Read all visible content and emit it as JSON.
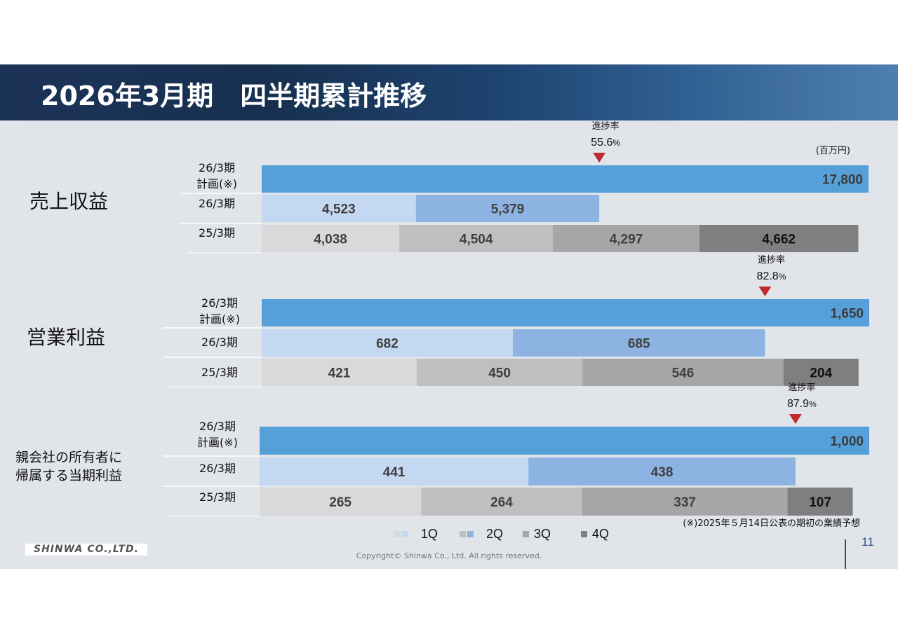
{
  "header": {
    "title": "2026年3月期　四半期累計推移"
  },
  "unit": "(百万円)",
  "footnote": "(※)2025年５月14日公表の期初の業績予想",
  "copyright": "Copyright© Shinwa Co., Ltd. All rights reserved.",
  "logo_text": "SHINWA CO.,LTD.",
  "page_number": "11",
  "legend": [
    {
      "label": "1Q",
      "color": "#c5d8f1"
    },
    {
      "label": "2Q",
      "color": "#8db3e2"
    },
    {
      "label": "3Q",
      "color": "#a6a6a6"
    },
    {
      "label": "4Q",
      "color": "#7f7f7f"
    }
  ],
  "colors": {
    "plan": "#56a0da",
    "q1_current": "#c5d8f1",
    "q2_current": "#8db3e2",
    "q1_prev": "#d9d9d9",
    "q2_prev": "#bfbfbf",
    "q3_prev": "#a6a6a6",
    "q4_prev": "#7f7f7f",
    "marker": "#c0282d"
  },
  "chart_data": [
    {
      "type": "bar",
      "orientation": "horizontal",
      "stacked": true,
      "section": "売上収益",
      "progress_label": "進捗率",
      "progress": "55.6%",
      "rows": [
        {
          "label": [
            "26/3期",
            "計画(※)"
          ],
          "segments": [
            17800
          ],
          "labels": [
            "17,800"
          ]
        },
        {
          "label": [
            "26/3期"
          ],
          "segments": [
            4523,
            5379
          ],
          "labels": [
            "4,523",
            "5,379"
          ]
        },
        {
          "label": [
            "25/3期"
          ],
          "segments": [
            4038,
            4504,
            4297,
            4662
          ],
          "labels": [
            "4,038",
            "4,504",
            "4,297",
            "4,662"
          ]
        }
      ]
    },
    {
      "type": "bar",
      "orientation": "horizontal",
      "stacked": true,
      "section": "営業利益",
      "progress_label": "進捗率",
      "progress": "82.8%",
      "rows": [
        {
          "label": [
            "26/3期",
            "計画(※)"
          ],
          "segments": [
            1650
          ],
          "labels": [
            "1,650"
          ]
        },
        {
          "label": [
            "26/3期"
          ],
          "segments": [
            682,
            685
          ],
          "labels": [
            "682",
            "685"
          ]
        },
        {
          "label": [
            "25/3期"
          ],
          "segments": [
            421,
            450,
            546,
            204
          ],
          "labels": [
            "421",
            "450",
            "546",
            "204"
          ]
        }
      ]
    },
    {
      "type": "bar",
      "orientation": "horizontal",
      "stacked": true,
      "section": "親会社の所有者に\n帰属する当期利益",
      "progress_label": "進捗率",
      "progress": "87.9%",
      "rows": [
        {
          "label": [
            "26/3期",
            "計画(※)"
          ],
          "segments": [
            1000
          ],
          "labels": [
            "1,000"
          ]
        },
        {
          "label": [
            "26/3期"
          ],
          "segments": [
            441,
            438
          ],
          "labels": [
            "441",
            "438"
          ]
        },
        {
          "label": [
            "25/3期"
          ],
          "segments": [
            265,
            264,
            337,
            107
          ],
          "labels": [
            "265",
            "264",
            "337",
            "107"
          ]
        }
      ]
    }
  ]
}
